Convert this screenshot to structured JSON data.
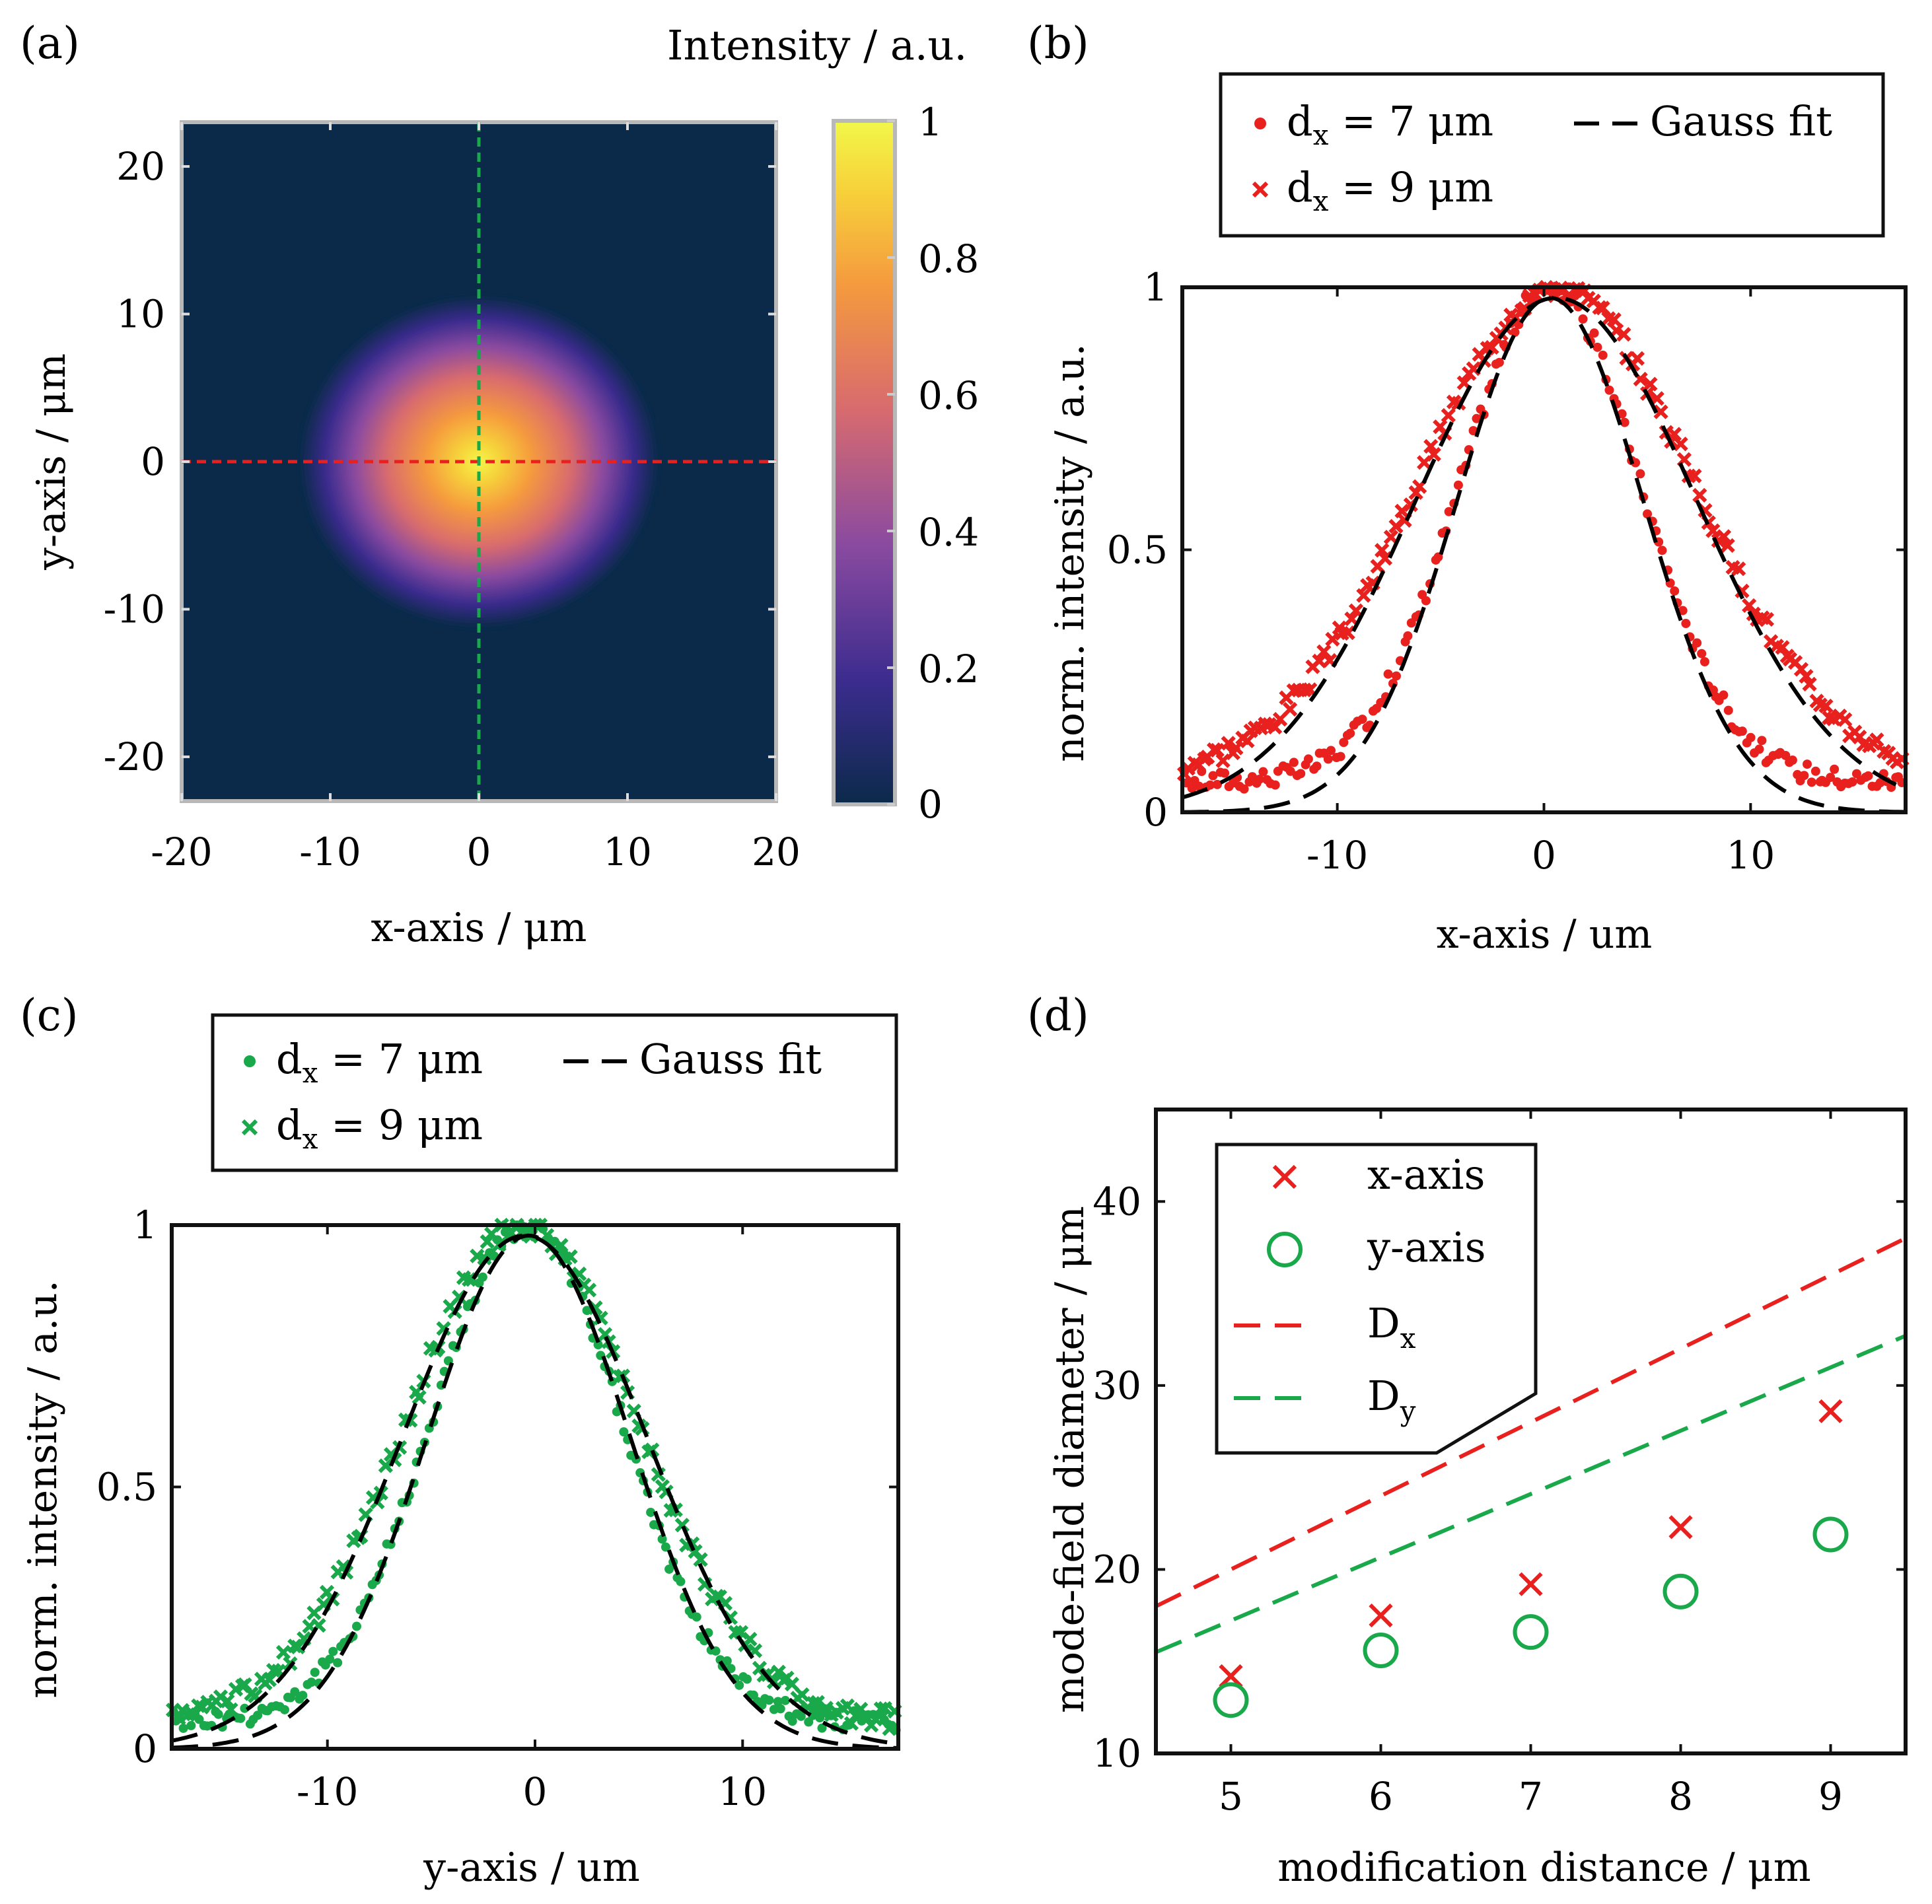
{
  "figure": {
    "panel_labels": [
      "(a)",
      "(b)",
      "(c)",
      "(d)"
    ]
  },
  "colors": {
    "red": "#e8201e",
    "green": "#19a84a",
    "black": "#000000",
    "map_background": "#0b2a4a"
  },
  "chart_data": [
    {
      "id": "a",
      "type": "heatmap",
      "title": "",
      "xlabel": "x-axis / μm",
      "ylabel": "y-axis / μm",
      "xlim": [
        -20,
        20
      ],
      "ylim": [
        -23,
        23
      ],
      "xticks": [
        -20,
        -10,
        0,
        10,
        20
      ],
      "yticks": [
        -20,
        -10,
        0,
        10,
        20
      ],
      "colorbar": {
        "label": "Intensity / a.u.",
        "range": [
          0,
          1
        ],
        "ticks": [
          "0",
          "0.2",
          "0.4",
          "0.6",
          "0.8",
          "1"
        ],
        "colormap": [
          "#0b2a4a",
          "#3b2c8e",
          "#8a4aa0",
          "#d86b6e",
          "#f59a3e",
          "#f7d23a",
          "#f2f74a"
        ]
      },
      "spot": {
        "center": [
          0,
          0
        ],
        "sigma_x": 4.5,
        "sigma_y": 3.9
      },
      "cut_lines": [
        {
          "axis": "y",
          "value": 0,
          "color": "red"
        },
        {
          "axis": "x",
          "value": 0,
          "color": "green"
        }
      ]
    },
    {
      "id": "b",
      "type": "scatter",
      "xlabel": "x-axis / um",
      "ylabel": "norm. intensity / a.u.",
      "xlim": [
        -17.5,
        17.5
      ],
      "ylim": [
        0,
        1
      ],
      "xticks": [
        "-10",
        "0",
        "10"
      ],
      "yticks": [
        "0",
        "0.5",
        "1"
      ],
      "legend": {
        "placement": "top",
        "entries": [
          {
            "label": "d",
            "sub": "x",
            "suffix": " = 7 μm",
            "marker": "dot",
            "color": "red"
          },
          {
            "label": "d",
            "sub": "x",
            "suffix": " = 9 μm",
            "marker": "x",
            "color": "red"
          },
          {
            "label": "Gauss fit",
            "marker": "dash",
            "color": "black"
          }
        ]
      },
      "series": [
        {
          "name": "dx = 7 μm",
          "marker": "dot",
          "center": 0.3,
          "sigma": 4.35,
          "offset": 0.06,
          "peak": 1.0
        },
        {
          "name": "dx = 9 μm",
          "marker": "x",
          "center": 0.6,
          "sigma": 6.6,
          "offset": 0.07,
          "peak": 1.0
        },
        {
          "name": "Gauss fit 7",
          "marker": "dash",
          "center": 0.3,
          "sigma": 4.5,
          "offset": 0.0,
          "peak": 0.98
        },
        {
          "name": "Gauss fit 9",
          "marker": "dash",
          "center": 0.6,
          "sigma": 6.8,
          "offset": 0.0,
          "peak": 0.98
        }
      ]
    },
    {
      "id": "c",
      "type": "scatter",
      "xlabel": "y-axis / um",
      "ylabel": "norm. intensity / a.u.",
      "xlim": [
        -17.5,
        17.5
      ],
      "ylim": [
        0,
        1
      ],
      "xticks": [
        "-10",
        "0",
        "10"
      ],
      "yticks": [
        "0",
        "0.5",
        "1"
      ],
      "legend": {
        "placement": "top",
        "entries": [
          {
            "label": "d",
            "sub": "x",
            "suffix": " = 7 μm",
            "marker": "dot",
            "color": "green"
          },
          {
            "label": "d",
            "sub": "x",
            "suffix": " = 9 μm",
            "marker": "x",
            "color": "green"
          },
          {
            "label": "Gauss fit",
            "marker": "dash",
            "color": "black"
          }
        ]
      },
      "series": [
        {
          "name": "dx = 7 μm",
          "marker": "dot",
          "center": -0.4,
          "sigma": 4.6,
          "offset": 0.05,
          "peak": 1.0
        },
        {
          "name": "dx = 9 μm",
          "marker": "x",
          "center": -0.6,
          "sigma": 5.6,
          "offset": 0.05,
          "peak": 1.0
        },
        {
          "name": "Gauss fit 7",
          "marker": "dash",
          "center": -0.3,
          "sigma": 4.9,
          "offset": 0.0,
          "peak": 0.98
        },
        {
          "name": "Gauss fit 9",
          "marker": "dash",
          "center": -0.5,
          "sigma": 5.9,
          "offset": 0.0,
          "peak": 0.98
        }
      ]
    },
    {
      "id": "d",
      "type": "scatter",
      "xlabel": "modification distance / μm",
      "ylabel": "mode-field diameter / μm",
      "xlim": [
        4.5,
        9.5
      ],
      "ylim": [
        10,
        45
      ],
      "xticks": [
        "5",
        "6",
        "7",
        "8",
        "9"
      ],
      "yticks": [
        "10",
        "20",
        "30",
        "40"
      ],
      "legend": {
        "placement": "top-left",
        "entries": [
          {
            "label": "x-axis",
            "marker": "x",
            "color": "red"
          },
          {
            "label": "y-axis",
            "marker": "circle",
            "color": "green"
          },
          {
            "label": "D",
            "sub": "x",
            "marker": "dash",
            "color": "red"
          },
          {
            "label": "D",
            "sub": "y",
            "marker": "dash",
            "color": "green"
          }
        ]
      },
      "series": [
        {
          "name": "x-axis",
          "marker": "x",
          "color": "red",
          "x": [
            5,
            6,
            7,
            8,
            9
          ],
          "y": [
            14.2,
            17.5,
            19.2,
            22.3,
            28.6
          ]
        },
        {
          "name": "y-axis",
          "marker": "circle",
          "color": "green",
          "x": [
            5,
            6,
            7,
            8,
            9
          ],
          "y": [
            12.9,
            15.6,
            16.6,
            18.8,
            21.9
          ]
        },
        {
          "name": "Dx",
          "marker": "dash",
          "color": "red",
          "x": [
            4.5,
            9.5
          ],
          "y": [
            18.0,
            38.0
          ]
        },
        {
          "name": "Dy",
          "marker": "dash",
          "color": "green",
          "x": [
            4.5,
            9.5
          ],
          "y": [
            15.5,
            32.7
          ]
        }
      ]
    }
  ]
}
